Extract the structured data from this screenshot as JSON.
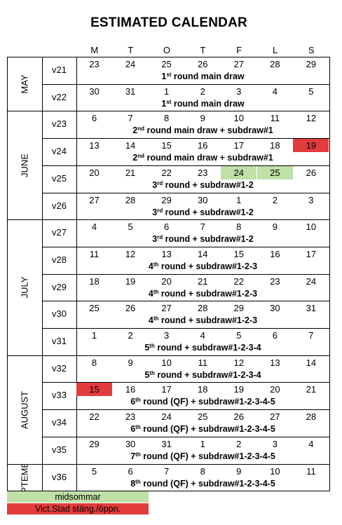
{
  "title": "ESTIMATED CALENDAR",
  "day_headers": [
    "M",
    "T",
    "O",
    "T",
    "F",
    "L",
    "S"
  ],
  "months": [
    {
      "label": "MAY",
      "start": 0,
      "end": 2
    },
    {
      "label": "JUNE",
      "start": 2,
      "end": 6
    },
    {
      "label": "JULY",
      "start": 6,
      "end": 11
    },
    {
      "label": "AUGUST",
      "start": 11,
      "end": 15
    },
    {
      "label": "SEPTEMBER",
      "start": 15,
      "end": 16
    }
  ],
  "weeks": [
    {
      "week": "v21",
      "days": [
        "23",
        "24",
        "25",
        "26",
        "27",
        "28",
        "29"
      ],
      "round_ord": "1",
      "round_sup": "st",
      "round_rest": " round main draw",
      "marks": {}
    },
    {
      "week": "v22",
      "days": [
        "30",
        "31",
        "1",
        "2",
        "3",
        "4",
        "5"
      ],
      "round_ord": "1",
      "round_sup": "st",
      "round_rest": " round main draw",
      "marks": {}
    },
    {
      "week": "v23",
      "days": [
        "6",
        "7",
        "8",
        "9",
        "10",
        "11",
        "12"
      ],
      "round_ord": "2",
      "round_sup": "nd",
      "round_rest": " round main draw + subdraw#1",
      "marks": {}
    },
    {
      "week": "v24",
      "days": [
        "13",
        "14",
        "15",
        "16",
        "17",
        "18",
        "19"
      ],
      "round_ord": "2",
      "round_sup": "nd",
      "round_rest": " round main draw + subdraw#1",
      "marks": {
        "6": "red"
      }
    },
    {
      "week": "v25",
      "days": [
        "20",
        "21",
        "22",
        "23",
        "24",
        "25",
        "26"
      ],
      "round_ord": "3",
      "round_sup": "rd",
      "round_rest": " round + subdraw#1-2",
      "marks": {
        "4": "green",
        "5": "green"
      }
    },
    {
      "week": "v26",
      "days": [
        "27",
        "28",
        "29",
        "30",
        "1",
        "2",
        "3"
      ],
      "round_ord": "3",
      "round_sup": "rd",
      "round_rest": " round + subdraw#1-2",
      "marks": {}
    },
    {
      "week": "v27",
      "days": [
        "4",
        "5",
        "6",
        "7",
        "8",
        "9",
        "10"
      ],
      "round_ord": "3",
      "round_sup": "rd",
      "round_rest": " round + subdraw#1-2",
      "marks": {}
    },
    {
      "week": "v28",
      "days": [
        "11",
        "12",
        "13",
        "14",
        "15",
        "16",
        "17"
      ],
      "round_ord": "4",
      "round_sup": "th",
      "round_rest": " round + subdraw#1-2-3",
      "marks": {}
    },
    {
      "week": "v29",
      "days": [
        "18",
        "19",
        "20",
        "21",
        "22",
        "23",
        "24"
      ],
      "round_ord": "4",
      "round_sup": "th",
      "round_rest": " round + subdraw#1-2-3",
      "marks": {}
    },
    {
      "week": "v30",
      "days": [
        "25",
        "26",
        "27",
        "28",
        "29",
        "30",
        "31"
      ],
      "round_ord": "4",
      "round_sup": "th",
      "round_rest": " round + subdraw#1-2-3",
      "marks": {}
    },
    {
      "week": "v31",
      "days": [
        "1",
        "2",
        "3",
        "4",
        "5",
        "6",
        "7"
      ],
      "round_ord": "5",
      "round_sup": "th",
      "round_rest": " round + subdraw#1-2-3-4",
      "marks": {}
    },
    {
      "week": "v32",
      "days": [
        "8",
        "9",
        "10",
        "11",
        "12",
        "13",
        "14"
      ],
      "round_ord": "5",
      "round_sup": "th",
      "round_rest": " round + subdraw#1-2-3-4",
      "marks": {}
    },
    {
      "week": "v33",
      "days": [
        "15",
        "16",
        "17",
        "18",
        "19",
        "20",
        "21"
      ],
      "round_ord": "6",
      "round_sup": "th",
      "round_rest": " round (QF) + subdraw#1-2-3-4-5",
      "marks": {
        "0": "red"
      }
    },
    {
      "week": "v34",
      "days": [
        "22",
        "23",
        "24",
        "25",
        "26",
        "27",
        "28"
      ],
      "round_ord": "6",
      "round_sup": "th",
      "round_rest": " round (QF) + subdraw#1-2-3-4-5",
      "marks": {}
    },
    {
      "week": "v35",
      "days": [
        "29",
        "30",
        "31",
        "1",
        "2",
        "3",
        "4"
      ],
      "round_ord": "7",
      "round_sup": "th",
      "round_rest": " round (QF) + subdraw#1-2-3-4-5",
      "marks": {}
    },
    {
      "week": "v36",
      "days": [
        "5",
        "6",
        "7",
        "8",
        "9",
        "10",
        "11"
      ],
      "round_ord": "8",
      "round_sup": "th",
      "round_rest": " round (QF) + subdraw#1-2-3-4-5",
      "marks": {}
    }
  ],
  "legend": {
    "green_label": "midsommar",
    "red_label": "Vict.Stad stäng./öppn.",
    "green_color": "#bfe0a7",
    "red_color": "#e33c3c"
  }
}
